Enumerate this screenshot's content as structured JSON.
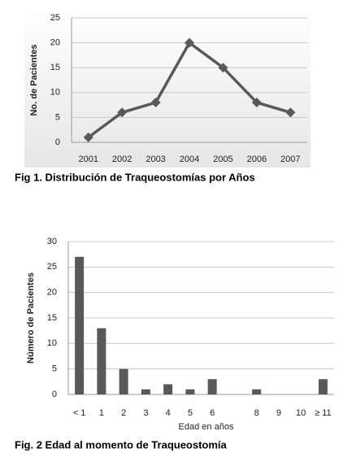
{
  "chart_data": [
    {
      "type": "line",
      "title": "Fig 1. Distribución de Traqueostomías por Años",
      "ylabel": "No. de Pacientes",
      "categories": [
        "2001",
        "2002",
        "2003",
        "2004",
        "2005",
        "2006",
        "2007"
      ],
      "values": [
        1,
        6,
        8,
        20,
        15,
        8,
        6
      ],
      "color": "#595959",
      "ylim": [
        0,
        25
      ],
      "yticks": [
        0,
        5,
        10,
        15,
        20,
        25
      ],
      "grid": true
    },
    {
      "type": "bar",
      "title": "Fig. 2 Edad al momento de Traqueostomía",
      "ylabel": "Número de Pacientes",
      "xlabel": "Edad en años",
      "categories": [
        "< 1",
        "1",
        "2",
        "3",
        "4",
        "5",
        "6",
        null,
        "8",
        "9",
        "10",
        "≥ 11"
      ],
      "values": [
        27,
        13,
        5,
        1,
        2,
        1,
        3,
        0,
        1,
        0,
        0,
        3
      ],
      "color": "#595959",
      "ylim": [
        0,
        30
      ],
      "yticks": [
        0,
        5,
        10,
        15,
        20,
        25,
        30
      ],
      "grid": true
    }
  ]
}
